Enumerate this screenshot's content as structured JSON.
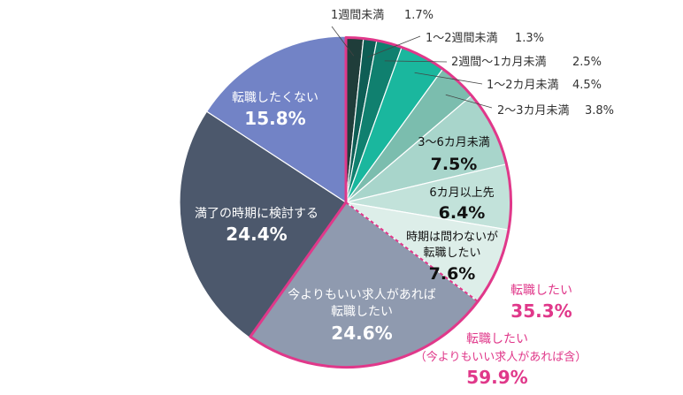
{
  "chart_data": {
    "type": "pie",
    "slices": [
      {
        "label": "1週間未満",
        "value": 1.7,
        "value_label": "1.7%",
        "color": "#1f3d3a"
      },
      {
        "label": "1～2週間未満",
        "value": 1.3,
        "value_label": "1.3%",
        "color": "#0e5e55"
      },
      {
        "label": "2週間～1カ月未満",
        "value": 2.5,
        "value_label": "2.5%",
        "color": "#10806f"
      },
      {
        "label": "1～2カ月未満",
        "value": 4.5,
        "value_label": "4.5%",
        "color": "#1ab79e"
      },
      {
        "label": "2～3カ月未満",
        "value": 3.8,
        "value_label": "3.8%",
        "color": "#7bbdae"
      },
      {
        "label": "3～6カ月未満",
        "value": 7.5,
        "value_label": "7.5%",
        "color": "#a8d5cb"
      },
      {
        "label": "6カ月以上先",
        "value": 6.4,
        "value_label": "6.4%",
        "color": "#c2e2da"
      },
      {
        "label": "時期は問わないが転職したい",
        "label_lines": [
          "時期は問わないが",
          "転職したい"
        ],
        "value": 7.6,
        "value_label": "7.6%",
        "color": "#ddeee9"
      },
      {
        "label": "今よりもいい求人があれば転職したい",
        "label_lines": [
          "今よりもいい求人があれば",
          "転職したい"
        ],
        "value": 24.6,
        "value_label": "24.6%",
        "color": "#8f9aaf"
      },
      {
        "label": "満了の時期に検討する",
        "label_lines": [
          "満了の時期に検討する"
        ],
        "value": 24.4,
        "value_label": "24.4%",
        "color": "#4c586c"
      },
      {
        "label": "転職したくない",
        "label_lines": [
          "転職したくない"
        ],
        "value": 15.8,
        "value_label": "15.8%",
        "color": "#7283c6"
      }
    ],
    "groups": [
      {
        "label": "転職したい",
        "value_label": "35.3%"
      },
      {
        "label": "転職したい",
        "sublabel": "（今よりもいい求人があれば含）",
        "value_label": "59.9%"
      }
    ],
    "highlight_color": "#e0388a"
  }
}
